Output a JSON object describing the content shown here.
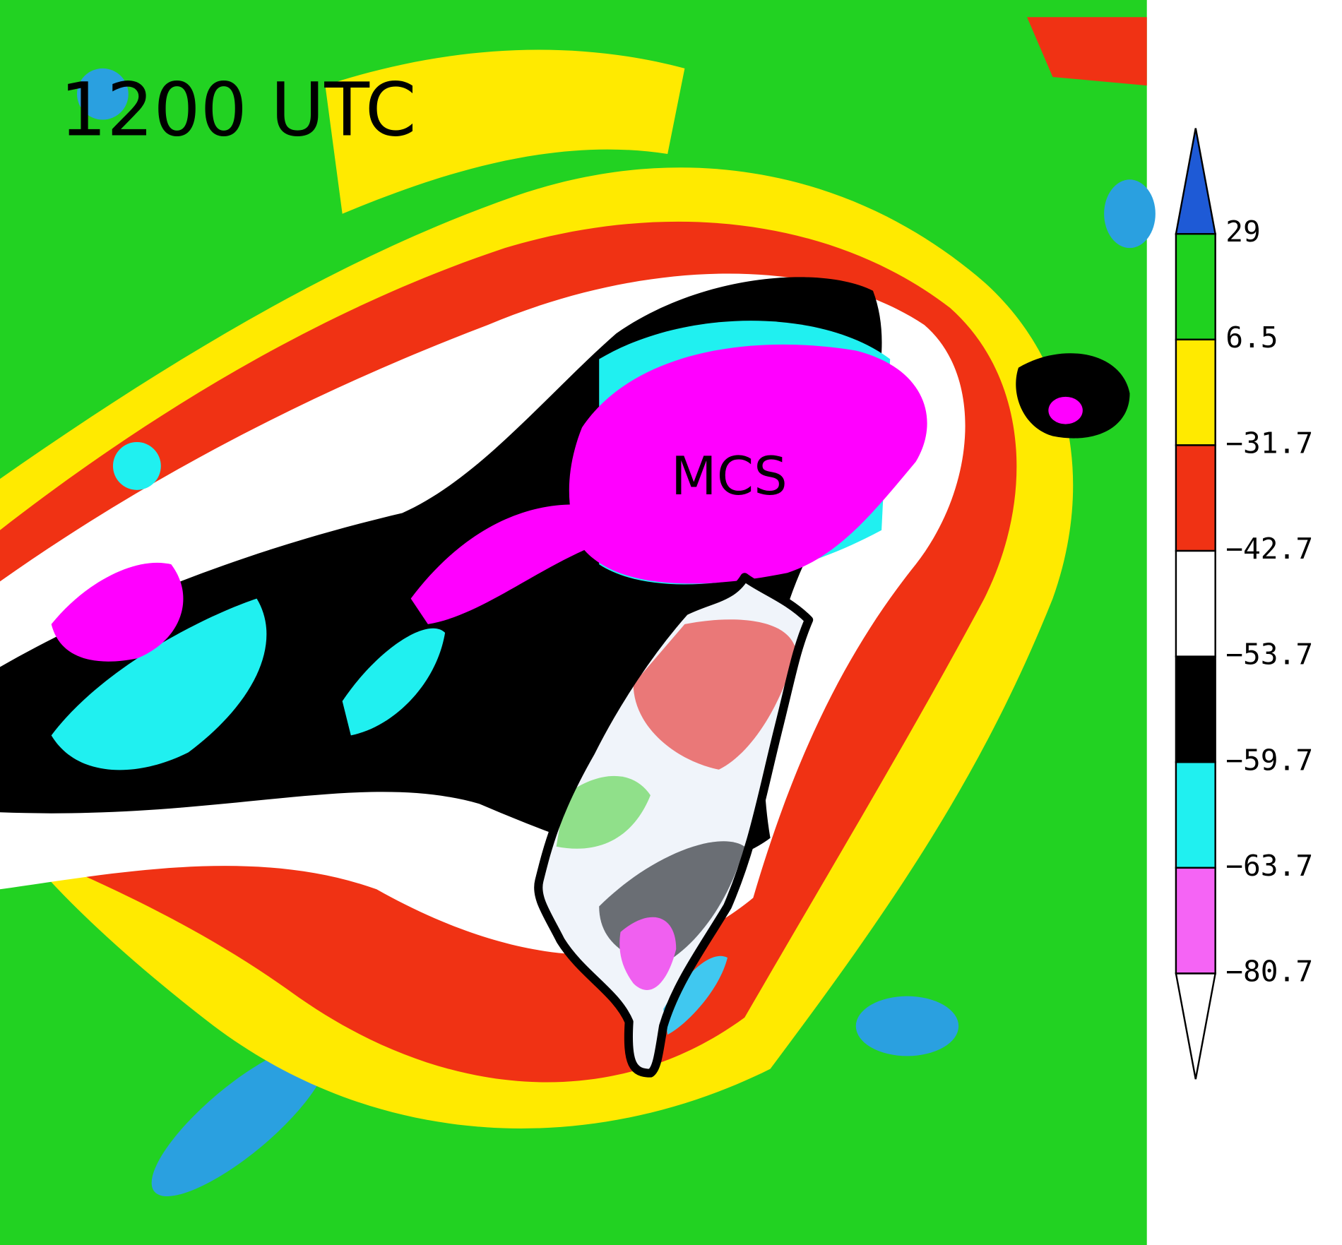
{
  "title": "1200 UTC",
  "annotation": "MCS",
  "colorbar": {
    "colors": [
      "#1e5ad6",
      "#1fd21f",
      "#ffea00",
      "#f03214",
      "#ffffff",
      "#000000",
      "#20f0f0",
      "#f564f5",
      "#ffffff"
    ],
    "labels": [
      "29",
      "6.5",
      "−31.7",
      "−42.7",
      "−53.7",
      "−59.7",
      "−63.7",
      "−80.7"
    ]
  }
}
